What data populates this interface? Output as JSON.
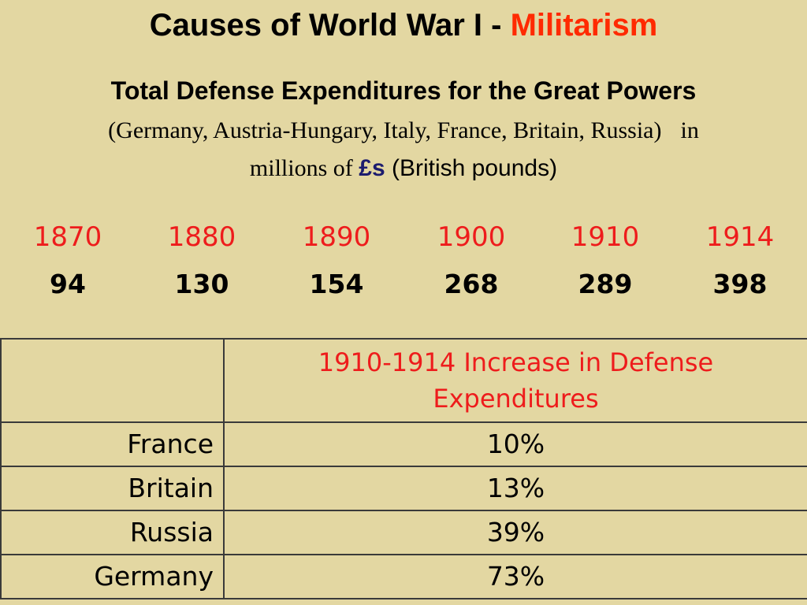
{
  "slide": {
    "title_main": "Causes of World War I - ",
    "title_accent": "Militarism",
    "subtitle": "Total Defense Expenditures for the Great Powers",
    "note_paren": "(Germany, Austria-Hungary, Italy, France, Britain, Russia)",
    "note_in": "in",
    "note_millions": "millions of ",
    "note_symbol": "£s",
    "note_pounds": " (British pounds)"
  },
  "expenditures": {
    "years": [
      "1870",
      "1880",
      "1890",
      "1900",
      "1910",
      "1914"
    ],
    "values": [
      "94",
      "130",
      "154",
      "268",
      "289",
      "398"
    ]
  },
  "increase_table": {
    "corner": "",
    "header": "1910-1914 Increase in Defense Expenditures",
    "rows": [
      {
        "country": "France",
        "increase": "10%"
      },
      {
        "country": "Britain",
        "increase": "13%"
      },
      {
        "country": "Russia",
        "increase": "39%"
      },
      {
        "country": "Germany",
        "increase": "73%"
      }
    ]
  },
  "colors": {
    "background": "#e3d7a2",
    "accent_red": "#ff2a00",
    "year_red": "#ee1c1c",
    "symbol_navy": "#1c1c6e"
  }
}
